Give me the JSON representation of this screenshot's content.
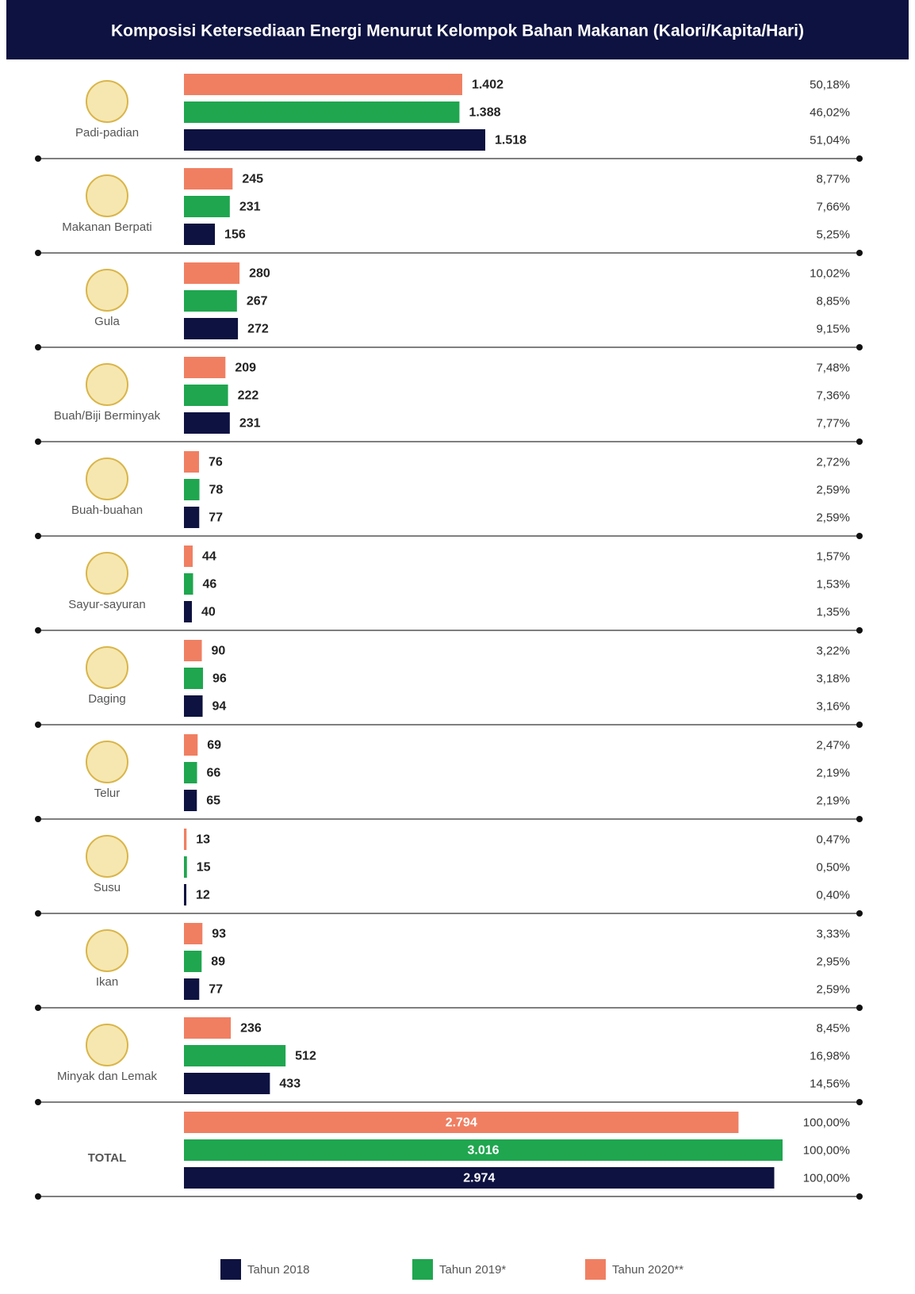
{
  "chart_data": {
    "type": "bar",
    "orientation": "horizontal",
    "title": "Komposisi Ketersediaan Energi Menurut Kelompok Bahan Makanan (Kalori/Kapita/Hari)",
    "categories": [
      "Padi-padian",
      "Makanan Berpati",
      "Gula",
      "Buah/Biji Berminyak",
      "Buah-buahan",
      "Sayur-sayuran",
      "Daging",
      "Telur",
      "Susu",
      "Ikan",
      "Minyak dan Lemak",
      "TOTAL"
    ],
    "series": [
      {
        "name": "Tahun 2020**",
        "color": "#f07f62",
        "values": [
          1402,
          245,
          280,
          209,
          76,
          44,
          90,
          69,
          13,
          93,
          236,
          2794
        ],
        "value_labels": [
          "1.402",
          "245",
          "280",
          "209",
          "76",
          "44",
          "90",
          "69",
          "13",
          "93",
          "236",
          "2.794"
        ],
        "percent_labels": [
          "50,18%",
          "8,77%",
          "10,02%",
          "7,48%",
          "2,72%",
          "1,57%",
          "3,22%",
          "2,47%",
          "0,47%",
          "3,33%",
          "8,45%",
          "100,00%"
        ]
      },
      {
        "name": "Tahun 2019*",
        "color": "#1fa64f",
        "values": [
          1388,
          231,
          267,
          222,
          78,
          46,
          96,
          66,
          15,
          89,
          512,
          3016
        ],
        "value_labels": [
          "1.388",
          "231",
          "267",
          "222",
          "78",
          "46",
          "96",
          "66",
          "15",
          "89",
          "512",
          "3.016"
        ],
        "percent_labels": [
          "46,02%",
          "7,66%",
          "8,85%",
          "7,36%",
          "2,59%",
          "1,53%",
          "3,18%",
          "2,19%",
          "0,50%",
          "2,95%",
          "16,98%",
          "100,00%"
        ]
      },
      {
        "name": "Tahun 2018",
        "color": "#0d1240",
        "values": [
          1518,
          156,
          272,
          231,
          77,
          40,
          94,
          65,
          12,
          77,
          433,
          2974
        ],
        "value_labels": [
          "1.518",
          "156",
          "272",
          "231",
          "77",
          "40",
          "94",
          "65",
          "12",
          "77",
          "433",
          "2.974"
        ],
        "percent_labels": [
          "51,04%",
          "5,25%",
          "9,15%",
          "7,77%",
          "2,59%",
          "1,35%",
          "3,16%",
          "2,19%",
          "0,40%",
          "2,59%",
          "14,56%",
          "100,00%"
        ]
      }
    ],
    "legend_order": [
      2,
      1,
      0
    ]
  }
}
